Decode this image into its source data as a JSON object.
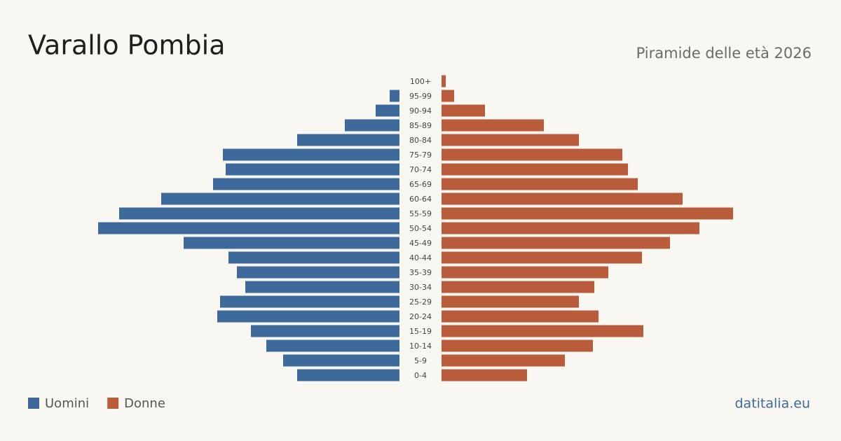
{
  "chart_data": {
    "type": "pyramid",
    "title": "Varallo Pombia",
    "subtitle": "Piramide delle età 2026",
    "categories": [
      "100+",
      "95-99",
      "90-94",
      "85-89",
      "80-84",
      "75-79",
      "70-74",
      "65-69",
      "60-64",
      "55-59",
      "50-54",
      "45-49",
      "40-44",
      "35-39",
      "30-34",
      "25-29",
      "20-24",
      "15-19",
      "10-14",
      "5-9",
      "0-4"
    ],
    "series": [
      {
        "name": "Uomini",
        "color": "#3d6a9a",
        "values": [
          0,
          7,
          17,
          39,
          73,
          126,
          124,
          133,
          170,
          200,
          215,
          154,
          122,
          116,
          110,
          128,
          130,
          106,
          95,
          83,
          73
        ]
      },
      {
        "name": "Donne",
        "color": "#b95c3c",
        "values": [
          3,
          9,
          31,
          73,
          98,
          129,
          133,
          140,
          172,
          208,
          184,
          163,
          143,
          119,
          109,
          98,
          112,
          144,
          108,
          88,
          61
        ]
      }
    ],
    "source": "datitalia.eu"
  }
}
